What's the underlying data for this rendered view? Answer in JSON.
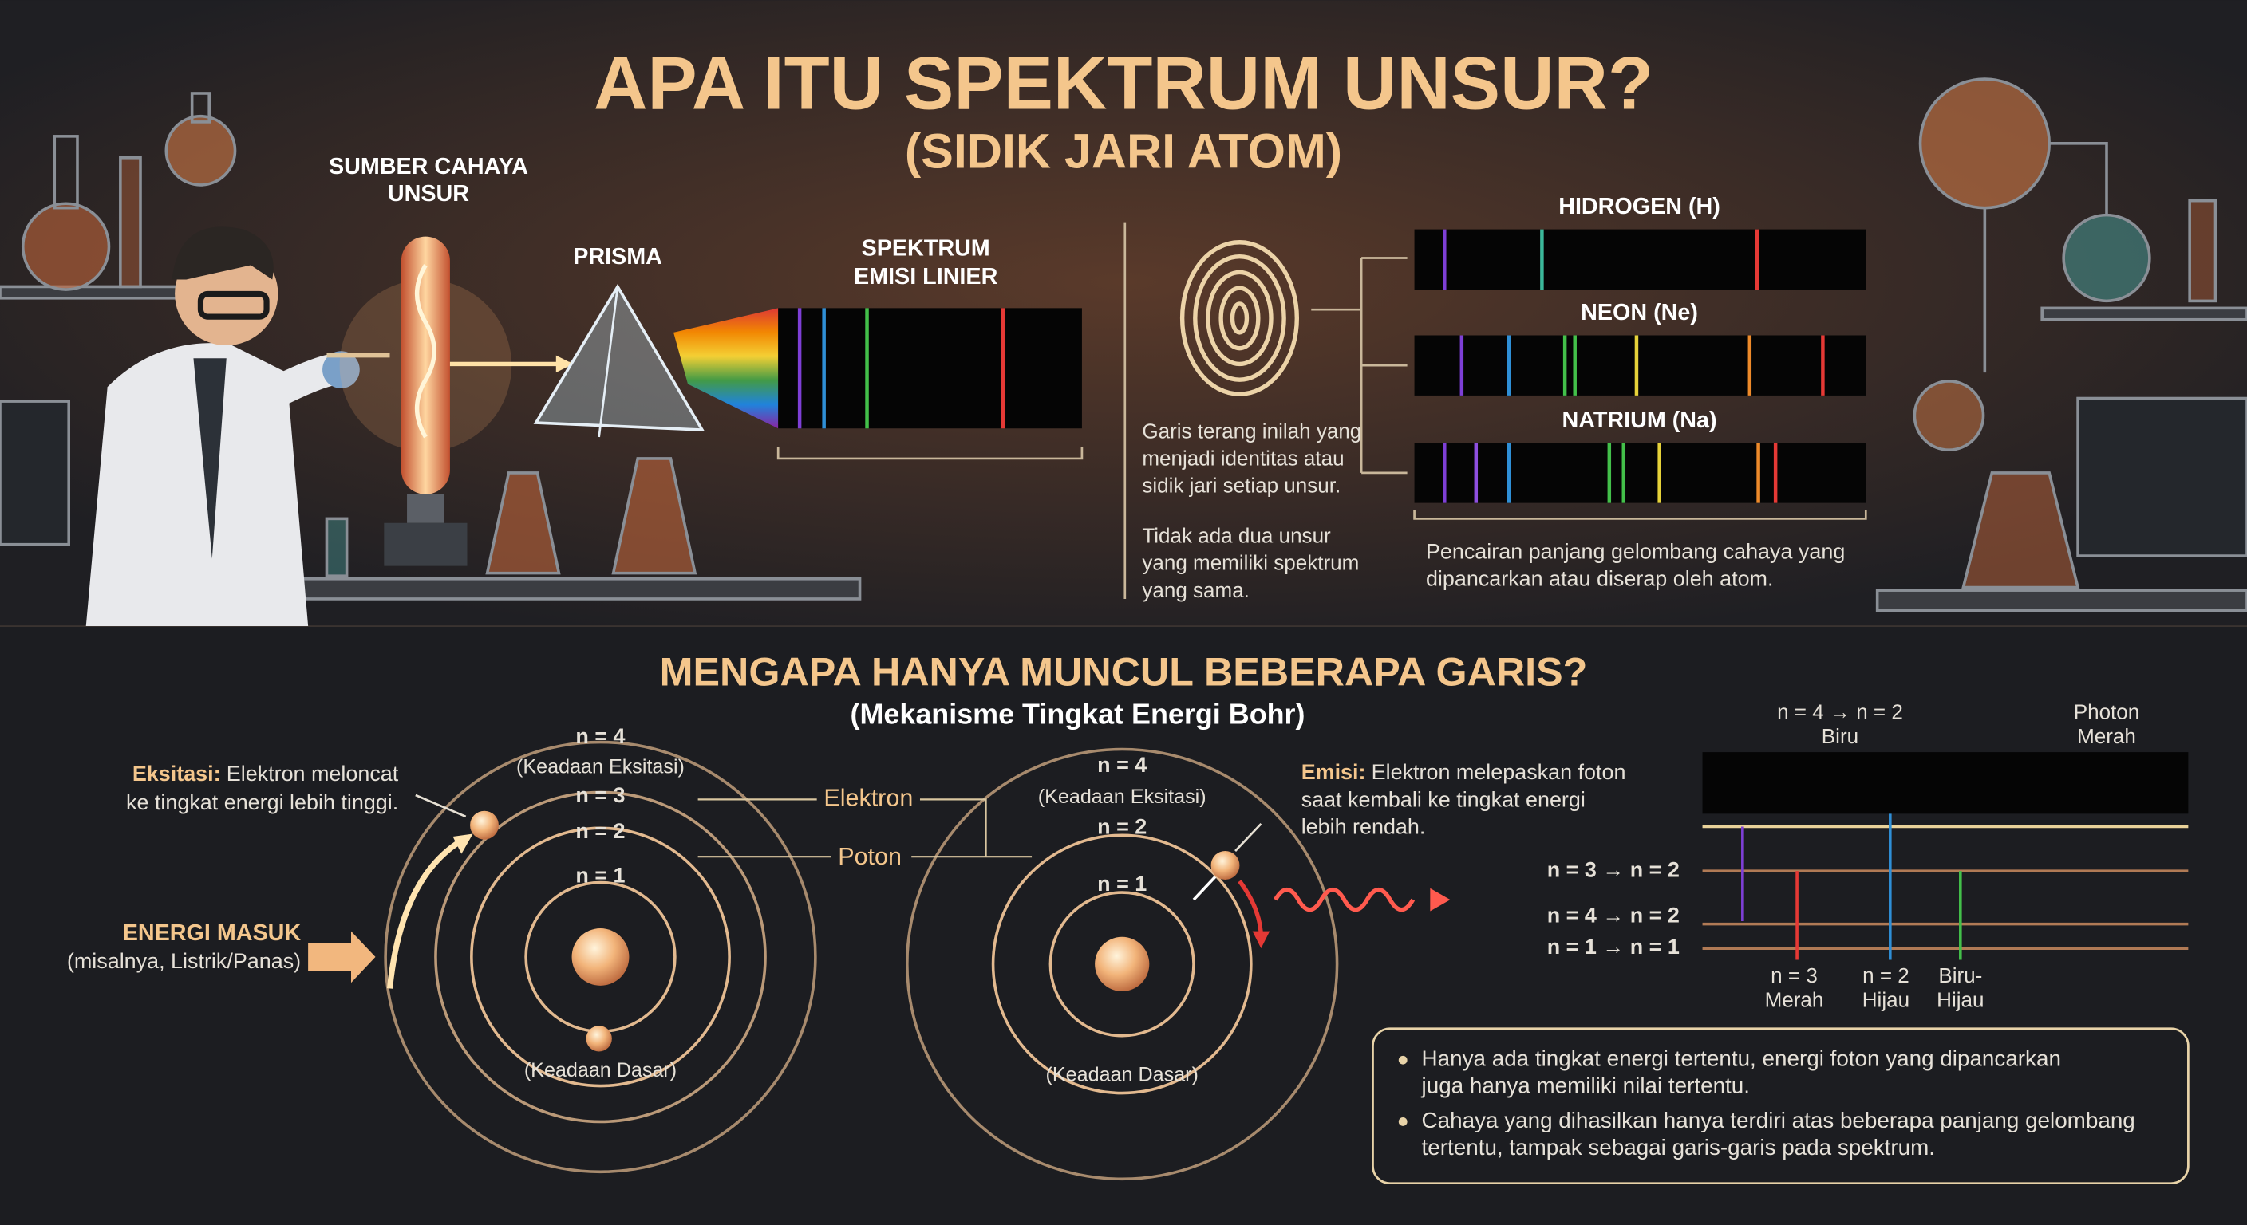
{
  "header": {
    "title": "APA ITU SPEKTRUM UNSUR?",
    "subtitle": "(SIDIK JARI ATOM)"
  },
  "experiment": {
    "source_label": [
      "SUMBER CAHAYA",
      "UNSUR"
    ],
    "prism_label": "PRISMA",
    "spectrum_label": [
      "SPEKTRUM",
      "EMISI LINIER"
    ]
  },
  "fingerprint": {
    "note_1": [
      "Garis terang inilah yang",
      "menjadi identitas atau",
      "sidik jari setiap unsur."
    ],
    "note_2": [
      "Tidak ada dua unsur",
      "yang memiliki spektrum",
      "yang sama."
    ],
    "elements": [
      "HIDROGEN (H)",
      "NEON (Ne)",
      "NATRIUM (Na)"
    ],
    "caption": [
      "Pencairan panjang gelombang cahaya yang",
      "dipancarkan atau diserap oleh atom."
    ]
  },
  "bohr": {
    "title": "MENGAPA HANYA MUNCUL BEBERAPA GARIS?",
    "subtitle": "(Mekanisme Tingkat Energi Bohr)",
    "excitation": {
      "label": "Eksitasi:",
      "text": [
        "Elektron meloncat",
        "ke tingkat energi lebih tinggi."
      ]
    },
    "energy_in": {
      "label": "ENERGI MASUK",
      "text": "(misalnya, Listrik/Panas)"
    },
    "atom_left": {
      "n4": "n = 4",
      "excited": "(Keadaan Eksitasi)",
      "n3": "n = 3",
      "n2": "n = 2",
      "n1": "n = 1",
      "ground": "(Keadaan Dasar)"
    },
    "electron_label": "Elektron",
    "photon_label": "Poton",
    "atom_right": {
      "n4": "n = 4",
      "excited": "(Keadaan Eksitasi)",
      "n2": "n = 2",
      "n1": "n = 1",
      "ground": "(Keadaan Dasar)"
    },
    "emission": {
      "label": "Emisi:",
      "text": [
        "Elektron melepaskan foton",
        "saat kembali ke tingkat energi",
        "lebih rendah."
      ]
    }
  },
  "levels": {
    "top_labels": [
      [
        "n = 4 → n = 2",
        "Biru"
      ],
      [
        "Photon",
        "Merah"
      ]
    ],
    "transitions": [
      "n = 3 → n = 2",
      "n = 4 → n = 2",
      "n = 1 → n = 1"
    ],
    "bottom_labels": [
      [
        "n = 3",
        "Merah"
      ],
      [
        "n = 2",
        "Hijau"
      ],
      [
        "Biru-",
        "Hijau"
      ]
    ]
  },
  "notes": [
    [
      "Hanya ada tingkat energi tertentu, energi foton yang dipancarkan",
      "juga hanya memiliki nilai tertentu."
    ],
    [
      "Cahaya yang dihasilkan hanya terdiri atas beberapa panjang gelombang",
      "tertentu, tampak sebagai garis-garis pada spektrum."
    ]
  ]
}
